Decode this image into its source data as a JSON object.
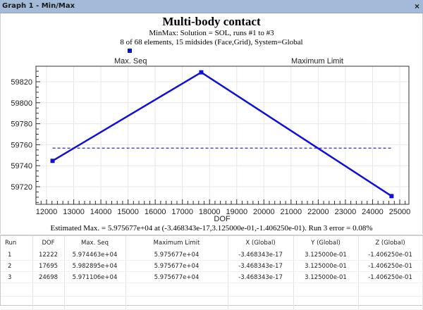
{
  "window": {
    "title": "Graph 1 - Min/Max",
    "close_icon": "×"
  },
  "graph": {
    "title": "Multi-body contact",
    "subtitle1": "MinMax: Solution = SOL, runs #1 to #3",
    "subtitle2": "8 of 68 elements, 15 midsides (Face,Grid), System=Global",
    "legend": {
      "series1": "Max. Seq",
      "series2": "Maximum Limit"
    },
    "xlabel": "DOF",
    "estimate": "Estimated Max. = 5.975677e+04 at (-3.468343e-17,3.125000e-01,-1.406250e-01). Run 3 error =  0.08%",
    "colors": {
      "series": "#1010dd",
      "limit": "#2a2ae0",
      "titlebar": "#a3bad8"
    }
  },
  "chart_data": {
    "type": "line",
    "title": "Multi-body contact",
    "subtitle": "MinMax: Solution = SOL, runs #1 to #3; 8 of 68 elements, 15 midsides (Face,Grid), System=Global",
    "xlabel": "DOF",
    "ylabel": "",
    "xlim": [
      11600,
      25300
    ],
    "ylim": [
      59705,
      59835
    ],
    "xticks": [
      12000,
      13000,
      14000,
      15000,
      16000,
      17000,
      18000,
      19000,
      20000,
      21000,
      22000,
      23000,
      24000,
      25000
    ],
    "yticks": [
      59720,
      59740,
      59760,
      59780,
      59800,
      59820
    ],
    "grid": true,
    "legend_position": "top",
    "series": [
      {
        "name": "Max. Seq",
        "style": "solid",
        "marker": "square",
        "x": [
          12222,
          17695,
          24698
        ],
        "y": [
          59744.63,
          59828.95,
          59711.06
        ]
      },
      {
        "name": "Maximum Limit",
        "style": "dashed",
        "x": [
          12222,
          24698
        ],
        "y": [
          59756.77,
          59756.77
        ]
      }
    ]
  },
  "table": {
    "columns": [
      "Run",
      "DOF",
      "Max. Seq",
      "Maximum Limit",
      "X (Global)",
      "Y (Global)",
      "Z (Global)"
    ],
    "rows": [
      [
        "1",
        "12222",
        "5.974463e+04",
        "5.975677e+04",
        "-3.468343e-17",
        "3.125000e-01",
        "-1.406250e-01"
      ],
      [
        "2",
        "17695",
        "5.982895e+04",
        "5.975677e+04",
        "-3.468343e-17",
        "3.125000e-01",
        "-1.406250e-01"
      ],
      [
        "3",
        "24698",
        "5.971106e+04",
        "5.975677e+04",
        "-3.468343e-17",
        "3.125000e-01",
        "-1.406250e-01"
      ]
    ]
  }
}
